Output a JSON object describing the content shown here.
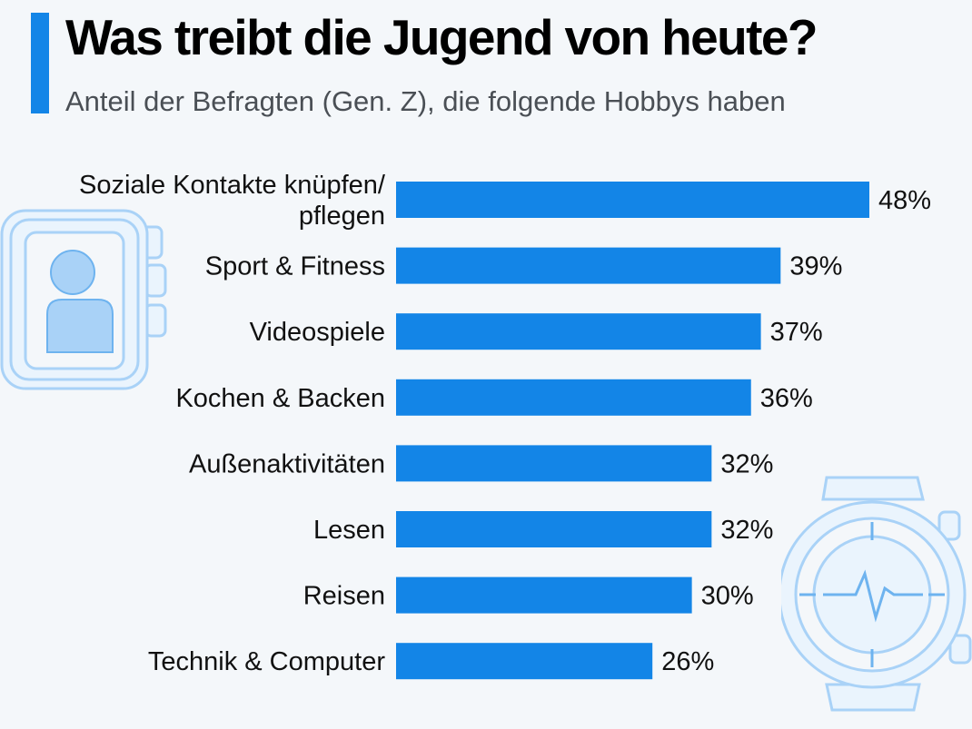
{
  "title": "Was treibt die Jugend von heute?",
  "subtitle": "Anteil der Befragten (Gen. Z), die folgende Hobbys haben",
  "colors": {
    "bar": "#1385e7",
    "accent": "#1385e7",
    "background": "#f4f7fa",
    "decoration": "#a9d2f7"
  },
  "decorations": [
    "smartwatch-profile-icon",
    "fitness-watch-heartbeat-icon"
  ],
  "chart_data": {
    "type": "bar",
    "orientation": "horizontal",
    "title": "Was treibt die Jugend von heute?",
    "subtitle": "Anteil der Befragten (Gen. Z), die folgende Hobbys haben",
    "categories": [
      "Soziale Kontakte knüpfen/ pflegen",
      "Sport & Fitness",
      "Videospiele",
      "Kochen & Backen",
      "Außenaktivitäten",
      "Lesen",
      "Reisen",
      "Technik & Computer"
    ],
    "category_lines": [
      [
        "Soziale Kontakte knüpfen/",
        "pflegen"
      ],
      [
        "Sport & Fitness"
      ],
      [
        "Videospiele"
      ],
      [
        "Kochen & Backen"
      ],
      [
        "Außenaktivitäten"
      ],
      [
        "Lesen"
      ],
      [
        "Reisen"
      ],
      [
        "Technik & Computer"
      ]
    ],
    "values": [
      48,
      39,
      37,
      36,
      32,
      32,
      30,
      26
    ],
    "value_labels": [
      "48%",
      "39%",
      "37%",
      "36%",
      "32%",
      "32%",
      "30%",
      "26%"
    ],
    "unit": "%",
    "xlim": [
      0,
      48
    ],
    "grid": false,
    "legend": "none"
  }
}
